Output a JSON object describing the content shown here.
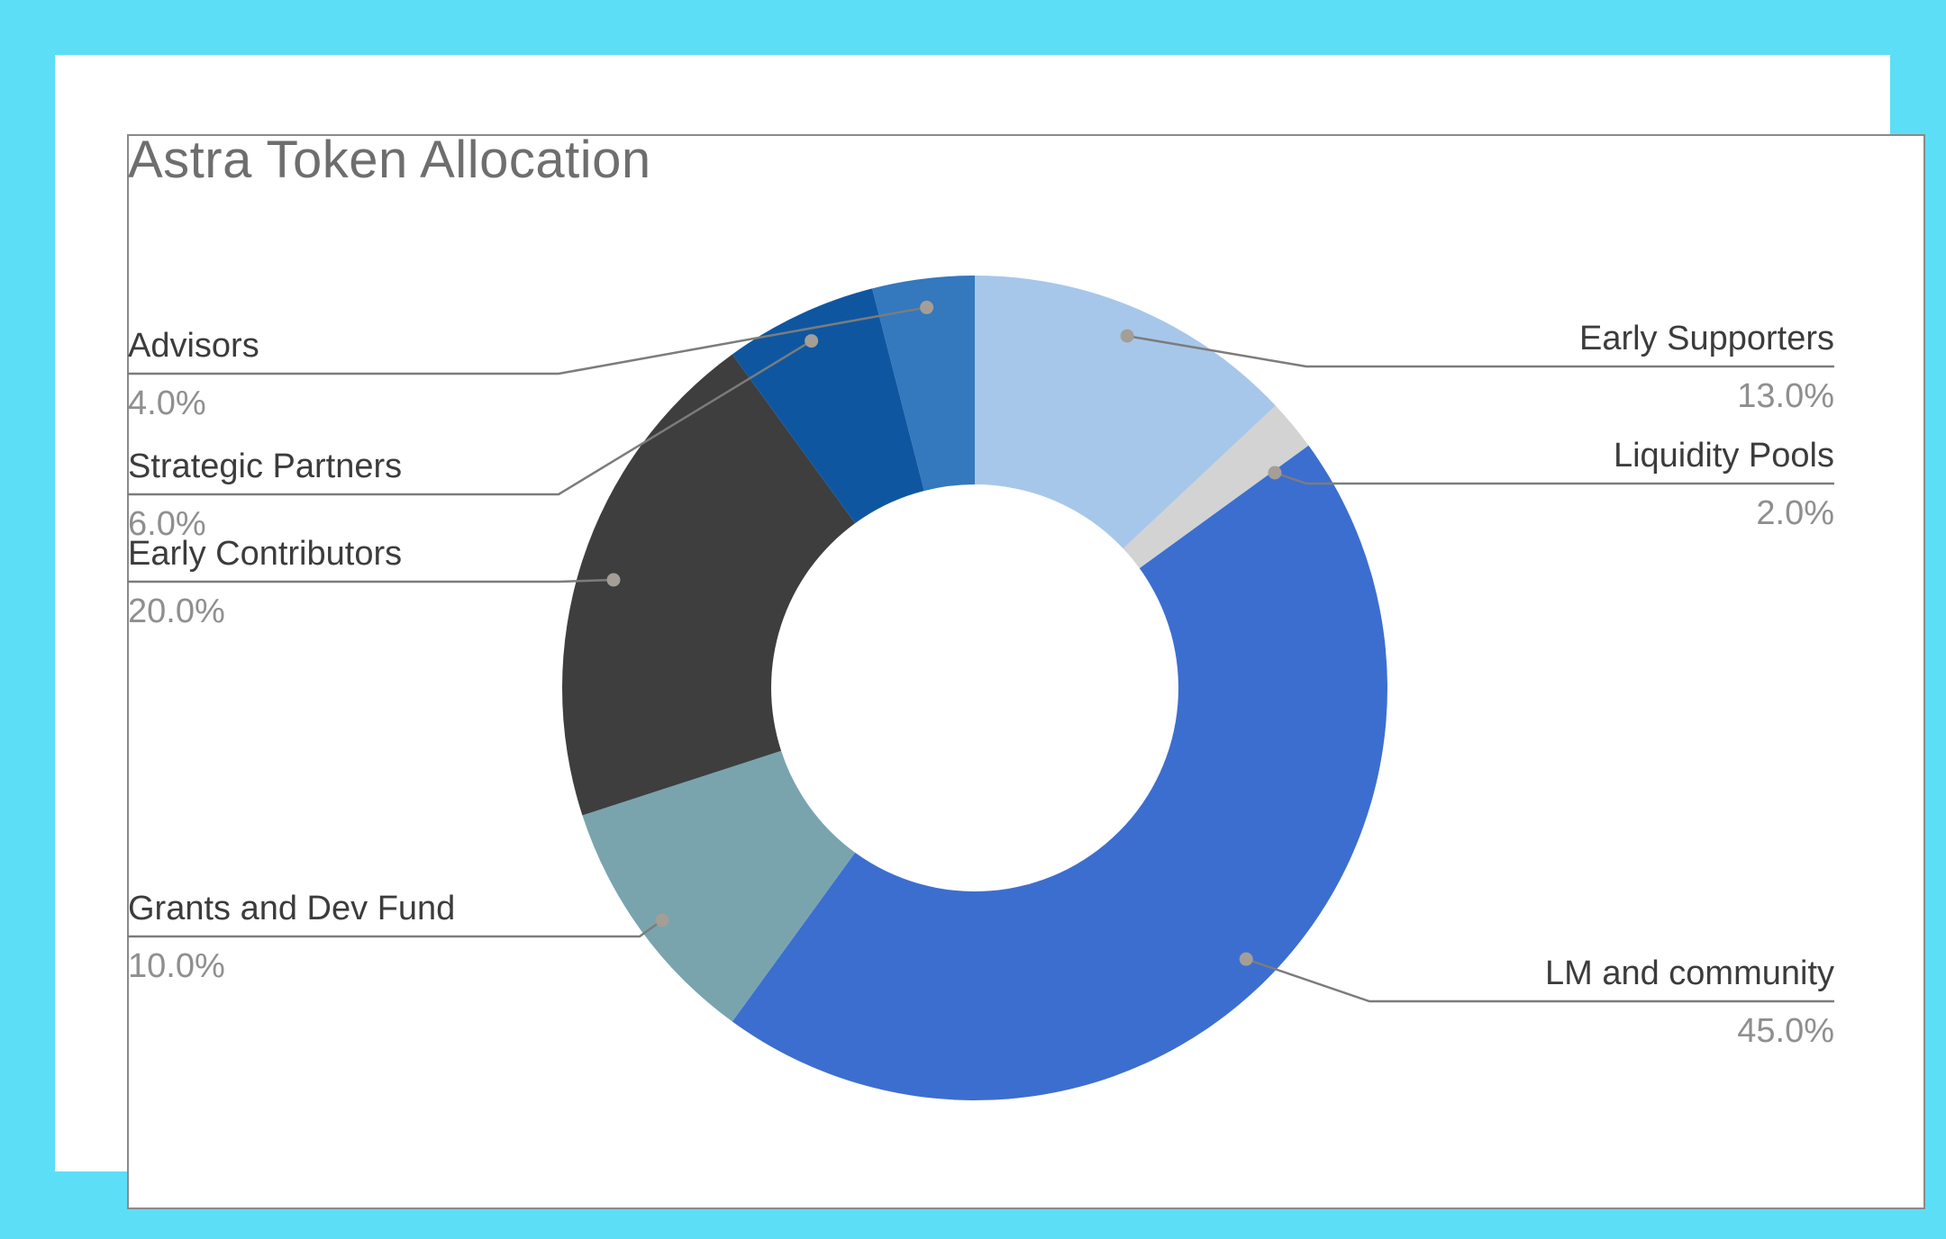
{
  "title": "Astra Token Allocation",
  "chart_data": {
    "type": "pie",
    "subtype": "donut",
    "title": "Astra Token Allocation",
    "legend_position": "none",
    "data_labels": "outside callouts with leader lines; category name above line, percent value below",
    "hole_ratio": 0.49,
    "start_angle_deg": 0,
    "direction": "clockwise",
    "segments": [
      {
        "label": "Early Supporters",
        "value": 13.0,
        "display": "13.0%",
        "color": "#A7C7EA"
      },
      {
        "label": "Liquidity Pools",
        "value": 2.0,
        "display": "2.0%",
        "color": "#D3D3D3"
      },
      {
        "label": "LM and community",
        "value": 45.0,
        "display": "45.0%",
        "color": "#3C6ED0"
      },
      {
        "label": "Grants and Dev Fund",
        "value": 10.0,
        "display": "10.0%",
        "color": "#79A4AE"
      },
      {
        "label": "Early Contributors",
        "value": 20.0,
        "display": "20.0%",
        "color": "#3E3E3E"
      },
      {
        "label": "Strategic Partners",
        "value": 6.0,
        "display": "6.0%",
        "color": "#0E57A0"
      },
      {
        "label": "Advisors",
        "value": 4.0,
        "display": "4.0%",
        "color": "#3478BE"
      }
    ]
  },
  "colors": {
    "frame": "#5CDEF7",
    "card_background": "#FFFFFF",
    "plot_border": "#8A8A8A",
    "title_text": "#6E6E6E",
    "label_text": "#3C3C3C",
    "percent_text": "#8F8F8F",
    "leader_line": "#7C7C7C",
    "leader_dot": "#A49E97"
  }
}
